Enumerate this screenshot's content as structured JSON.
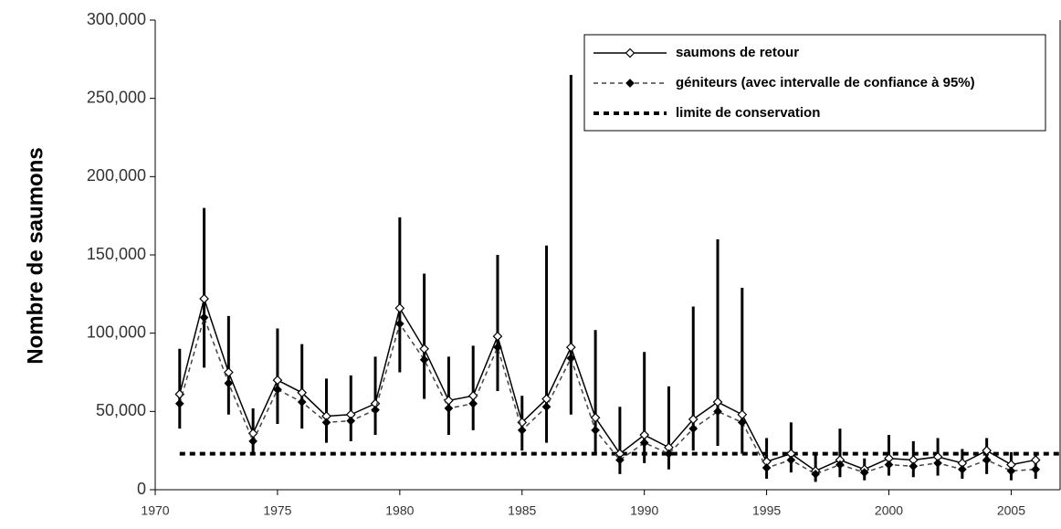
{
  "chart_data": {
    "type": "line",
    "ylabel": "Nombre de saumons",
    "x": [
      1971,
      1972,
      1973,
      1974,
      1975,
      1976,
      1977,
      1978,
      1979,
      1980,
      1981,
      1982,
      1983,
      1984,
      1985,
      1986,
      1987,
      1988,
      1989,
      1990,
      1991,
      1992,
      1993,
      1994,
      1995,
      1996,
      1997,
      1998,
      1999,
      2000,
      2001,
      2002,
      2003,
      2004,
      2005,
      2006
    ],
    "series": [
      {
        "name": "saumons de retour",
        "color": "#000000",
        "marker": "open-diamond",
        "dash": "solid",
        "values": [
          61000,
          122000,
          75000,
          36000,
          70000,
          62000,
          47000,
          48000,
          55000,
          116000,
          90000,
          57000,
          60000,
          98000,
          43000,
          58000,
          91000,
          46000,
          23000,
          35000,
          27000,
          45000,
          56000,
          48000,
          18000,
          23000,
          12000,
          19000,
          13000,
          20000,
          19000,
          21000,
          17000,
          25000,
          16000,
          19000
        ]
      },
      {
        "name": "géniteurs (avec intervalle de confiance à 95%)",
        "color": "#000000",
        "marker": "filled-diamond",
        "dash": "dashed",
        "values": [
          55000,
          110000,
          68000,
          31000,
          64000,
          56000,
          43000,
          44000,
          51000,
          106000,
          83000,
          52000,
          55000,
          91000,
          38000,
          53000,
          84000,
          38000,
          19000,
          30000,
          23000,
          39000,
          50000,
          43000,
          14000,
          19000,
          10000,
          16000,
          11000,
          16000,
          15000,
          17000,
          13000,
          19000,
          12000,
          13000
        ],
        "ci_lower": [
          39000,
          78000,
          48000,
          22000,
          42000,
          39000,
          30000,
          31000,
          35000,
          75000,
          58000,
          35000,
          38000,
          63000,
          25000,
          30000,
          48000,
          23000,
          10000,
          17000,
          13000,
          25000,
          28000,
          23000,
          7000,
          11000,
          5000,
          8000,
          6000,
          9000,
          8000,
          9000,
          7000,
          10000,
          6000,
          7000
        ],
        "ci_upper": [
          90000,
          180000,
          111000,
          52000,
          103000,
          93000,
          71000,
          73000,
          85000,
          174000,
          138000,
          85000,
          92000,
          150000,
          60000,
          156000,
          265000,
          102000,
          53000,
          88000,
          66000,
          117000,
          160000,
          129000,
          33000,
          43000,
          22000,
          39000,
          20000,
          35000,
          31000,
          33000,
          26000,
          33000,
          24000,
          24000
        ]
      }
    ],
    "conservation_limit": {
      "name": "limite de conservation",
      "value": 23000,
      "x_range": [
        1971,
        2007
      ],
      "color": "#000000"
    },
    "xlim": [
      1970,
      2007
    ],
    "xticks": [
      1970,
      1975,
      1980,
      1985,
      1990,
      1995,
      2000,
      2005
    ],
    "ylim": [
      0,
      300000
    ],
    "yticks": [
      0,
      {
        "value": 50000,
        "label": "50,000"
      },
      {
        "value": 100000,
        "label": "100,000"
      },
      {
        "value": 150000,
        "label": "150,000"
      },
      {
        "value": 200000,
        "label": "200,000"
      },
      {
        "value": 250000,
        "label": "250,000"
      },
      {
        "value": 300000,
        "label": "300,000"
      }
    ],
    "legend": "upper right",
    "grid": false
  }
}
